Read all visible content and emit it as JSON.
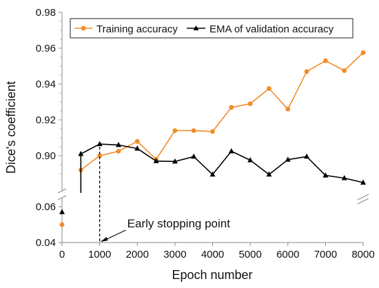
{
  "chart_data": {
    "type": "line",
    "xlabel": "Epoch number",
    "ylabel": "Dice's coefficient",
    "xlim": [
      0,
      8000
    ],
    "xticks": [
      "0",
      "1000",
      "2000",
      "3000",
      "4000",
      "5000",
      "6000",
      "7000",
      "8000"
    ],
    "y_axis_broken": true,
    "y_lower_segment": {
      "ylim": [
        0.04,
        0.06
      ],
      "ticks": [
        "0.04",
        "0.06"
      ]
    },
    "y_upper_segment": {
      "ylim": [
        0.89,
        0.98
      ],
      "ticks": [
        "0.90",
        "0.92",
        "0.94",
        "0.96",
        "0.98"
      ]
    },
    "grid": false,
    "legend_position": "top",
    "series": [
      {
        "name": "Training accuracy",
        "color": "#f28c28",
        "marker": "circle",
        "x": [
          0,
          500,
          1000,
          1500,
          2000,
          2500,
          3000,
          3500,
          4000,
          4500,
          5000,
          5500,
          6000,
          6500,
          7000,
          7500,
          8000
        ],
        "y": [
          0.05,
          0.892,
          0.9,
          0.9025,
          0.908,
          0.898,
          0.914,
          0.914,
          0.9135,
          0.927,
          0.929,
          0.9375,
          0.926,
          0.947,
          0.953,
          0.9475,
          0.9575
        ]
      },
      {
        "name": "EMA of validation accuracy",
        "color": "#000000",
        "marker": "triangle",
        "x": [
          0,
          500,
          1000,
          1500,
          2000,
          2500,
          3000,
          3500,
          4000,
          4500,
          5000,
          5500,
          6000,
          6500,
          7000,
          7500,
          8000
        ],
        "y": [
          0.057,
          0.901,
          0.9065,
          0.906,
          0.904,
          0.897,
          0.8968,
          0.8995,
          0.8895,
          0.9025,
          0.8975,
          0.8895,
          0.8978,
          0.8995,
          0.889,
          0.8875,
          0.885
        ]
      }
    ],
    "annotations": [
      {
        "text": "Early stopping point",
        "x": 1000
      }
    ]
  }
}
